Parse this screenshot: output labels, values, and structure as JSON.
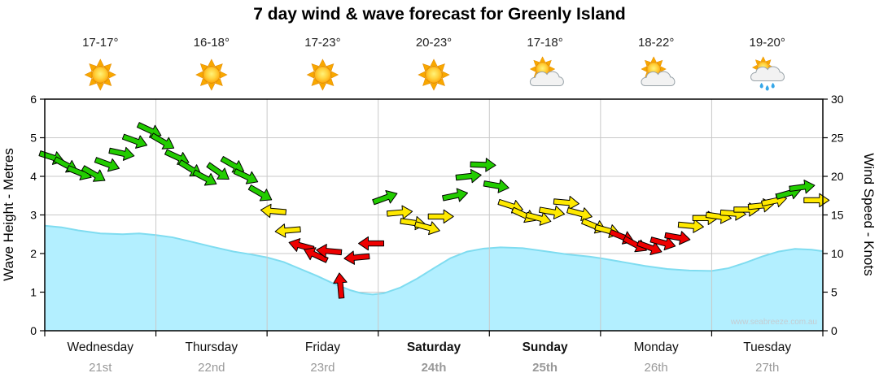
{
  "title": "7 day wind & wave forecast for Greenly Island",
  "watermark": "www.seabreeze.com.au",
  "axes": {
    "left_label": "Wave Height - Metres",
    "right_label": "Wind Speed - Knots",
    "left_ticks": [
      0,
      1,
      2,
      3,
      4,
      5,
      6
    ],
    "right_ticks": [
      0,
      5,
      10,
      15,
      20,
      25,
      30
    ]
  },
  "days": [
    {
      "name": "Wednesday",
      "date": "21st",
      "temp": "17-17°",
      "icon": "sunny",
      "weekend": false
    },
    {
      "name": "Thursday",
      "date": "22nd",
      "temp": "16-18°",
      "icon": "sunny",
      "weekend": false
    },
    {
      "name": "Friday",
      "date": "23rd",
      "temp": "17-23°",
      "icon": "sunny",
      "weekend": false
    },
    {
      "name": "Saturday",
      "date": "24th",
      "temp": "20-23°",
      "icon": "sunny",
      "weekend": true
    },
    {
      "name": "Sunday",
      "date": "25th",
      "temp": "17-18°",
      "icon": "partly-cloudy",
      "weekend": true
    },
    {
      "name": "Monday",
      "date": "26th",
      "temp": "18-22°",
      "icon": "partly-cloudy",
      "weekend": false
    },
    {
      "name": "Tuesday",
      "date": "27th",
      "temp": "19-20°",
      "icon": "rain",
      "weekend": false
    }
  ],
  "chart_data": {
    "type": "area",
    "title": "7 day wind & wave forecast for Greenly Island",
    "x_unit": "days",
    "x_range": [
      0,
      7
    ],
    "left_axis": {
      "label": "Wave Height - Metres",
      "range": [
        0,
        6
      ],
      "unit": "m"
    },
    "right_axis": {
      "label": "Wind Speed - Knots",
      "range": [
        0,
        30
      ],
      "unit": "knots"
    },
    "grid": true,
    "series": [
      {
        "name": "Wave Height",
        "type": "area",
        "axis": "left",
        "unit": "metres",
        "points": [
          [
            0,
            2.72
          ],
          [
            0.15,
            2.68
          ],
          [
            0.3,
            2.6
          ],
          [
            0.5,
            2.52
          ],
          [
            0.7,
            2.5
          ],
          [
            0.85,
            2.52
          ],
          [
            1.0,
            2.48
          ],
          [
            1.15,
            2.42
          ],
          [
            1.3,
            2.32
          ],
          [
            1.5,
            2.18
          ],
          [
            1.7,
            2.05
          ],
          [
            1.85,
            1.98
          ],
          [
            2.0,
            1.9
          ],
          [
            2.15,
            1.78
          ],
          [
            2.3,
            1.6
          ],
          [
            2.45,
            1.42
          ],
          [
            2.6,
            1.22
          ],
          [
            2.75,
            1.05
          ],
          [
            2.85,
            0.97
          ],
          [
            2.95,
            0.94
          ],
          [
            3.05,
            0.97
          ],
          [
            3.2,
            1.12
          ],
          [
            3.35,
            1.35
          ],
          [
            3.5,
            1.62
          ],
          [
            3.65,
            1.88
          ],
          [
            3.8,
            2.05
          ],
          [
            3.95,
            2.13
          ],
          [
            4.1,
            2.16
          ],
          [
            4.3,
            2.14
          ],
          [
            4.5,
            2.06
          ],
          [
            4.7,
            1.98
          ],
          [
            4.9,
            1.92
          ],
          [
            5.0,
            1.88
          ],
          [
            5.2,
            1.78
          ],
          [
            5.4,
            1.68
          ],
          [
            5.6,
            1.6
          ],
          [
            5.8,
            1.56
          ],
          [
            6.0,
            1.55
          ],
          [
            6.15,
            1.62
          ],
          [
            6.3,
            1.76
          ],
          [
            6.45,
            1.92
          ],
          [
            6.6,
            2.05
          ],
          [
            6.75,
            2.12
          ],
          [
            6.9,
            2.1
          ],
          [
            7.0,
            2.06
          ]
        ]
      },
      {
        "name": "Wind Speed",
        "type": "arrows",
        "axis": "right",
        "unit": "knots",
        "dir_convention": "degrees, 0 = pointing right, positive clockwise",
        "points": [
          [
            0.06,
            22.5,
            18
          ],
          [
            0.19,
            21.5,
            28
          ],
          [
            0.31,
            20.5,
            22
          ],
          [
            0.44,
            20.3,
            30
          ],
          [
            0.56,
            21.6,
            20
          ],
          [
            0.69,
            23.0,
            12
          ],
          [
            0.81,
            24.6,
            20
          ],
          [
            0.94,
            26.0,
            25
          ],
          [
            1.06,
            24.5,
            30
          ],
          [
            1.19,
            22.5,
            25
          ],
          [
            1.31,
            21.0,
            32
          ],
          [
            1.44,
            19.8,
            28
          ],
          [
            1.56,
            20.6,
            35
          ],
          [
            1.69,
            21.5,
            30
          ],
          [
            1.81,
            20.0,
            25
          ],
          [
            1.94,
            17.8,
            30
          ],
          [
            2.06,
            15.5,
            185
          ],
          [
            2.19,
            13.0,
            175
          ],
          [
            2.31,
            11.0,
            195
          ],
          [
            2.44,
            9.8,
            205
          ],
          [
            2.56,
            10.3,
            185
          ],
          [
            2.66,
            5.8,
            265
          ],
          [
            2.81,
            9.5,
            175
          ],
          [
            2.94,
            11.3,
            180
          ],
          [
            3.06,
            17.2,
            340
          ],
          [
            3.19,
            15.3,
            355
          ],
          [
            3.31,
            14.0,
            8
          ],
          [
            3.44,
            13.4,
            15
          ],
          [
            3.56,
            14.8,
            0
          ],
          [
            3.69,
            17.5,
            348
          ],
          [
            3.81,
            20.0,
            354
          ],
          [
            3.94,
            21.5,
            2
          ],
          [
            4.06,
            18.8,
            10
          ],
          [
            4.19,
            16.2,
            18
          ],
          [
            4.31,
            15.0,
            25
          ],
          [
            4.44,
            14.6,
            15
          ],
          [
            4.56,
            15.4,
            10
          ],
          [
            4.69,
            16.6,
            5
          ],
          [
            4.81,
            15.2,
            15
          ],
          [
            4.94,
            13.6,
            22
          ],
          [
            5.06,
            13.0,
            15
          ],
          [
            5.19,
            12.2,
            22
          ],
          [
            5.31,
            11.2,
            28
          ],
          [
            5.44,
            10.8,
            20
          ],
          [
            5.56,
            11.4,
            15
          ],
          [
            5.69,
            12.1,
            10
          ],
          [
            5.81,
            13.6,
            5
          ],
          [
            5.94,
            14.6,
            0
          ],
          [
            6.06,
            14.8,
            8
          ],
          [
            6.19,
            15.2,
            4
          ],
          [
            6.31,
            15.7,
            0
          ],
          [
            6.44,
            16.2,
            354
          ],
          [
            6.56,
            16.8,
            348
          ],
          [
            6.69,
            17.8,
            344
          ],
          [
            6.81,
            18.6,
            352
          ],
          [
            6.94,
            16.9,
            0
          ]
        ]
      }
    ],
    "wind_color_rules": {
      "green_min_knots": 17,
      "yellow_min_knots": 12.5,
      "red_below_knots": 12.5
    },
    "colors": {
      "wave_fill": "#b3efff",
      "wave_line": "#7fdcf0",
      "wind_green": "#22cc00",
      "wind_yellow": "#ffe900",
      "wind_red": "#ee0000",
      "grid": "#c9c9c9",
      "frame": "#000000"
    }
  }
}
